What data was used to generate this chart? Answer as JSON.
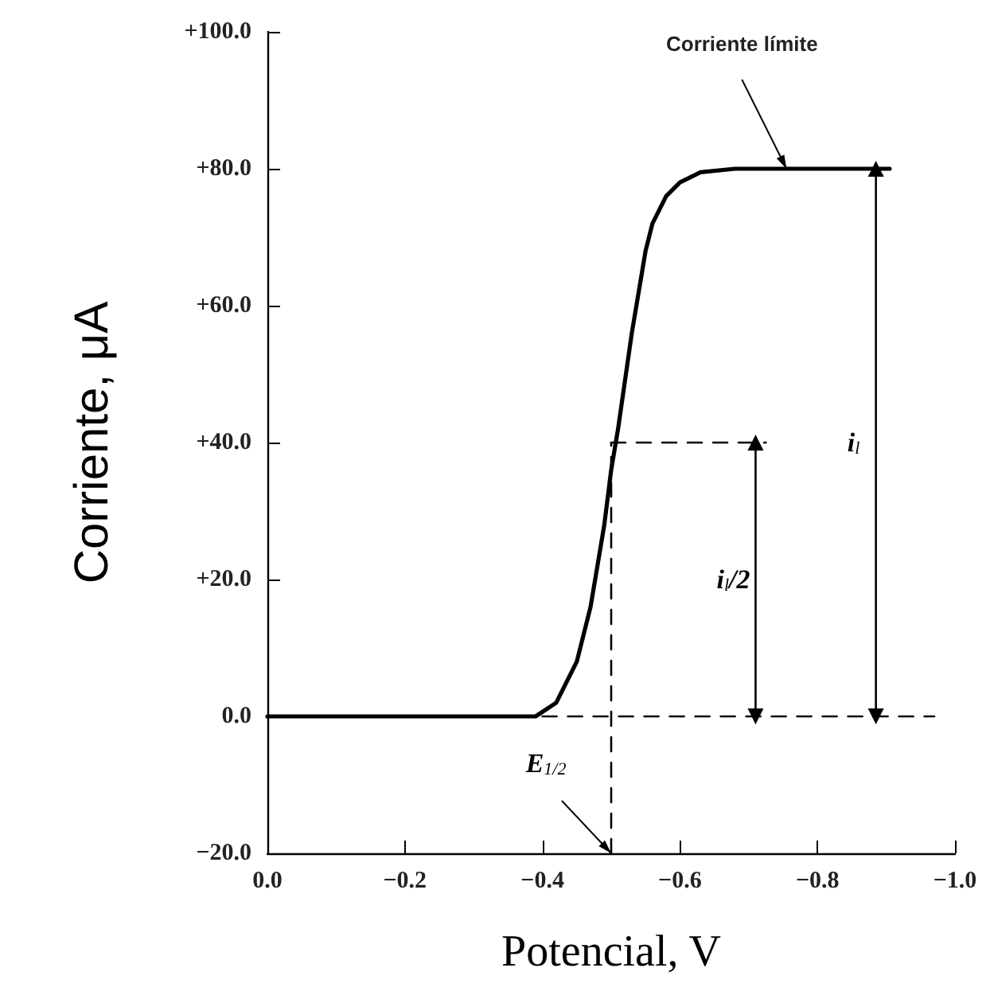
{
  "chart_data": {
    "type": "line",
    "xlabel": "Potencial, V",
    "ylabel": "Corriente, μA",
    "xlim": [
      0,
      -1
    ],
    "ylim": [
      -20,
      100
    ],
    "xticks": [
      {
        "value": 0,
        "label": "0.0"
      },
      {
        "value": -0.2,
        "label": "−0.2"
      },
      {
        "value": -0.4,
        "label": "−0.4"
      },
      {
        "value": -0.6,
        "label": "−0.6"
      },
      {
        "value": -0.8,
        "label": "−0.8"
      },
      {
        "value": -1,
        "label": "−1.0"
      }
    ],
    "yticks": [
      {
        "value": -20,
        "label": "−20.0"
      },
      {
        "value": 0,
        "label": "0.0"
      },
      {
        "value": 20,
        "label": "+20.0"
      },
      {
        "value": 40,
        "label": "+40.0"
      },
      {
        "value": 60,
        "label": "+60.0"
      },
      {
        "value": 80,
        "label": "+80.0"
      },
      {
        "value": 100,
        "label": "+100.0"
      }
    ],
    "grid": false,
    "marker": "none",
    "line_style": "solid",
    "series": [
      {
        "color": "#000000",
        "x": [
          0,
          -0.39,
          -0.42,
          -0.45,
          -0.47,
          -0.49,
          -0.5,
          -0.51,
          -0.53,
          -0.55,
          -0.56,
          -0.58,
          -0.6,
          -0.63,
          -0.68,
          -0.905
        ],
        "values": [
          0,
          0,
          2,
          8,
          16,
          28,
          36,
          42,
          56,
          68,
          72,
          76,
          78,
          79.5,
          80,
          80
        ]
      },
      {
        "color": "#000000",
        "line_style": "dashed",
        "x": [
          -0.4,
          -0.97
        ],
        "values": [
          0,
          0
        ]
      },
      {
        "color": "#000000",
        "line_style": "dashed",
        "x": [
          -0.5,
          -0.725
        ],
        "values": [
          40,
          40
        ]
      },
      {
        "color": "#000000",
        "line_style": "dashed",
        "x": [
          -0.5,
          -0.5
        ],
        "values": [
          -20,
          40
        ]
      },
      {
        "color": "#000000",
        "marker": "triangle",
        "x": [
          -0.71,
          -0.71
        ],
        "values": [
          0,
          40
        ]
      },
      {
        "color": "#000000",
        "marker": "triangle",
        "x": [
          -0.885,
          -0.885
        ],
        "values": [
          0,
          80
        ]
      }
    ],
    "annotations": [
      {
        "text": "Corriente límite",
        "x": -0.755,
        "y": 80
      },
      {
        "text": "E$_{1/2}$",
        "x": -0.5,
        "y": -20
      },
      {
        "text": "i$_{l}$",
        "x": -0.885,
        "y": 40
      },
      {
        "text": "i$_{l}$/2",
        "x": -0.71,
        "y": 20
      }
    ]
  }
}
